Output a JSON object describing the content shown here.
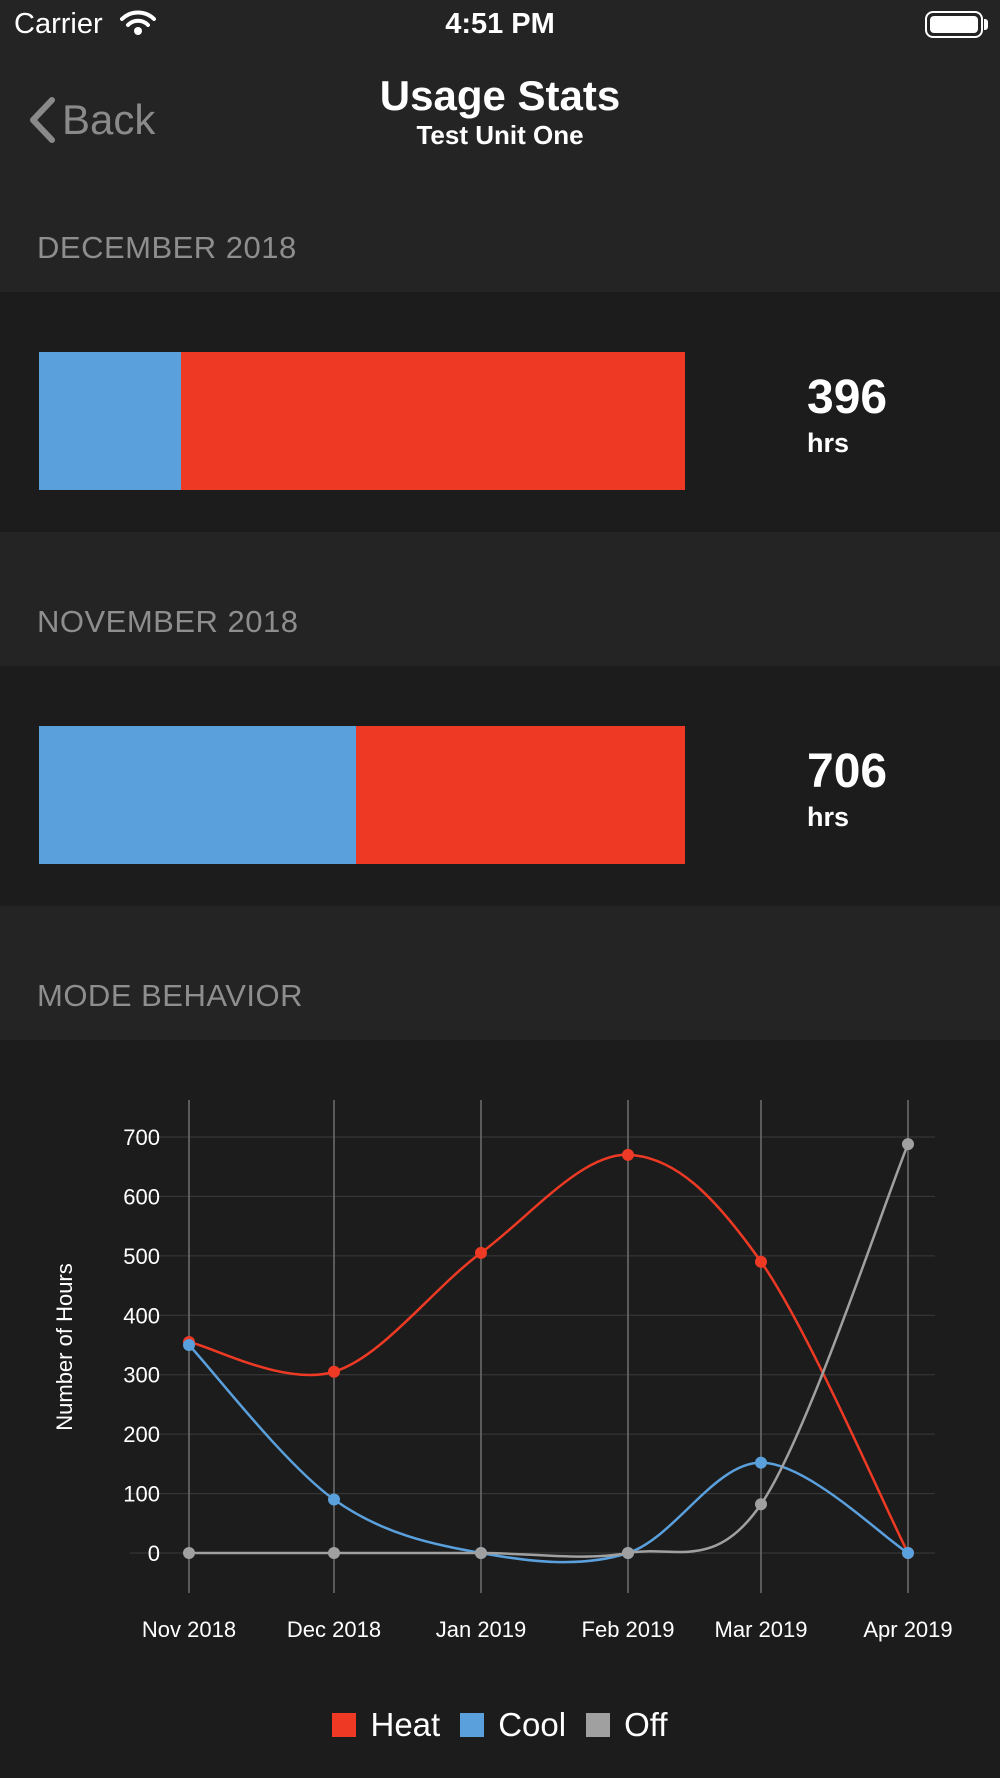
{
  "status_bar": {
    "carrier": "Carrier",
    "time": "4:51 PM"
  },
  "nav": {
    "back_label": "Back",
    "title": "Usage Stats",
    "subtitle": "Test Unit One"
  },
  "months": [
    {
      "header": "DECEMBER 2018",
      "hours": "396",
      "unit": "hrs",
      "cool_fraction": 0.22,
      "heat_fraction": 0.78
    },
    {
      "header": "NOVEMBER 2018",
      "hours": "706",
      "unit": "hrs",
      "cool_fraction": 0.49,
      "heat_fraction": 0.51
    }
  ],
  "mode_behavior": {
    "header": "MODE BEHAVIOR"
  },
  "colors": {
    "heat": "#ee3a24",
    "cool": "#5aa0dc",
    "off": "#a0a0a0"
  },
  "chart_data": {
    "type": "line",
    "categories": [
      "Nov 2018",
      "Dec 2018",
      "Jan 2019",
      "Feb 2019",
      "Mar 2019",
      "Apr 2019"
    ],
    "ylabel": "Number of Hours",
    "yticks": [
      0,
      100,
      200,
      300,
      400,
      500,
      600,
      700
    ],
    "series": [
      {
        "name": "Heat",
        "color": "#ee3a24",
        "values": [
          355,
          305,
          505,
          670,
          490,
          0
        ]
      },
      {
        "name": "Cool",
        "color": "#5aa0dc",
        "values": [
          350,
          90,
          0,
          0,
          152,
          0
        ]
      },
      {
        "name": "Off",
        "color": "#a0a0a0",
        "values": [
          0,
          0,
          0,
          0,
          82,
          688
        ]
      }
    ],
    "legend": "bottom",
    "grid": true
  }
}
